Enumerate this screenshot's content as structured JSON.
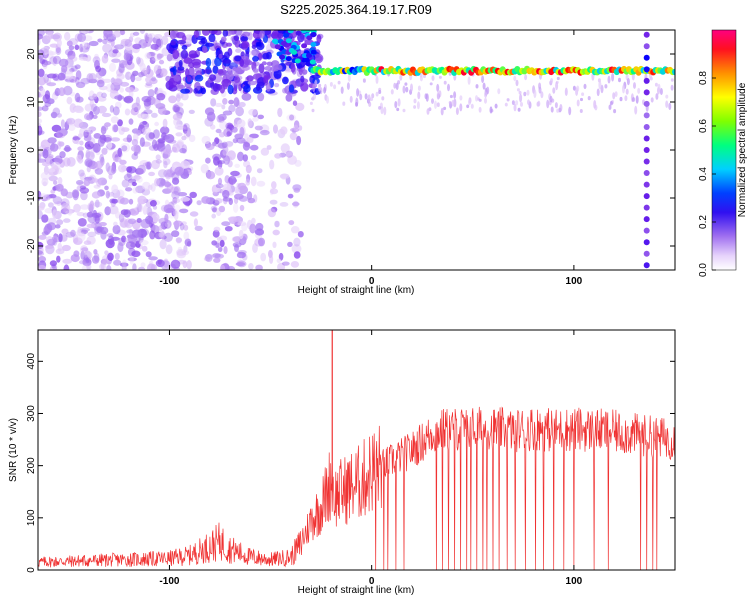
{
  "colors": {
    "line": "#f03232",
    "axis": "#000000",
    "background": "#ffffff"
  },
  "chart_data": [
    {
      "type": "heatmap",
      "title": "S225.2025.364.19.17.R09",
      "xlabel": "Height of straight line (km)",
      "ylabel": "Frequency (Hz)",
      "xlim": [
        -165,
        150
      ],
      "ylim": [
        -25,
        25
      ],
      "x_ticks": [
        -100,
        0,
        100
      ],
      "y_ticks": [
        -20,
        -10,
        0,
        10,
        20
      ],
      "colorbar": {
        "label": "Normalized spectral amplitude",
        "range": [
          0.0,
          1.0
        ],
        "ticks": [
          0.0,
          0.2,
          0.4,
          0.6,
          0.8
        ],
        "tick_labels": [
          "0.0",
          "0.2",
          "0.4",
          "0.6",
          "0.8"
        ],
        "colormap": [
          "#ffffff",
          "#d8b8f8",
          "#a070f0",
          "#7020e8",
          "#0000ff",
          "#00c8ff",
          "#00ff80",
          "#c8ff00",
          "#ffc800",
          "#ff0000",
          "#ff0080"
        ]
      },
      "features": [
        {
          "name": "noise",
          "x_range": [
            -165,
            -35
          ],
          "freq_range": [
            -25,
            25
          ],
          "level": 0.15
        },
        {
          "name": "signal-line",
          "x_range": [
            -30,
            150
          ],
          "freq": 16.5,
          "level": 0.9
        }
      ]
    },
    {
      "type": "line",
      "title": "",
      "xlabel": "Height of straight line (km)",
      "ylabel": "SNR (10 * v/v)",
      "xlim": [
        -165,
        150
      ],
      "ylim": [
        0,
        460
      ],
      "x_ticks": [
        -100,
        0,
        100
      ],
      "y_ticks": [
        0,
        100,
        200,
        300,
        400
      ],
      "series": [
        {
          "x": [
            -165,
            -140,
            -120,
            -100,
            -90,
            -80,
            -75,
            -70,
            -60,
            -50,
            -40,
            -35,
            -30,
            -25,
            -22,
            -20,
            -18,
            -15,
            -10,
            -5,
            0,
            5,
            10,
            15,
            20,
            25,
            30,
            35,
            40,
            50,
            60,
            70,
            80,
            90,
            100,
            110,
            120,
            130,
            140,
            150
          ],
          "y": [
            15,
            18,
            20,
            22,
            28,
            45,
            55,
            40,
            25,
            20,
            25,
            50,
            95,
            120,
            150,
            175,
            140,
            150,
            160,
            170,
            190,
            200,
            210,
            220,
            230,
            245,
            262,
            268,
            270,
            272,
            270,
            268,
            272,
            268,
            270,
            268,
            265,
            260,
            255,
            250
          ],
          "spikes": [
            {
              "x": -19.5,
              "y": 460
            }
          ],
          "dropouts": [
            2,
            6,
            8,
            12,
            16,
            32,
            35,
            38,
            41,
            44,
            47,
            49,
            52,
            55,
            57,
            60,
            63,
            67,
            71,
            76,
            81,
            85,
            90,
            95,
            100,
            110,
            117,
            133,
            136,
            139,
            141
          ]
        }
      ]
    }
  ]
}
